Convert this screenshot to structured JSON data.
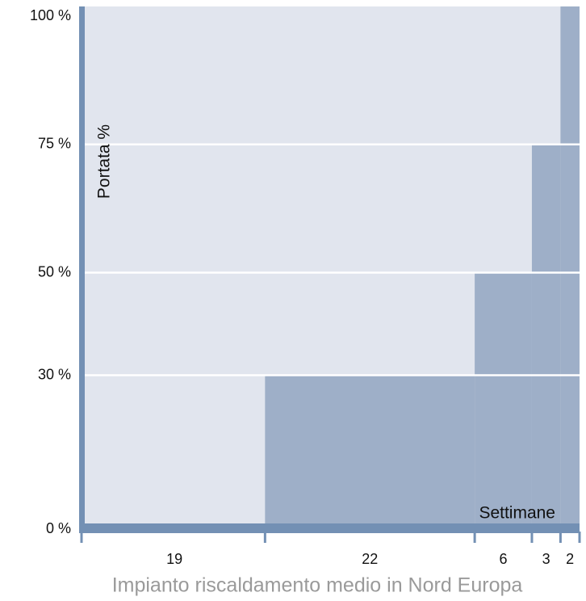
{
  "chart_data": {
    "type": "step-bar",
    "x_label": "Settimane",
    "y_label": "Portata %",
    "caption": "Impianto riscaldamento medio in Nord Europa",
    "widths": [
      19,
      22,
      6,
      3,
      2
    ],
    "values": [
      0,
      30,
      50,
      75,
      100
    ],
    "xlim": [
      0,
      52
    ],
    "ylim": [
      0,
      100
    ],
    "yticks": [
      {
        "value": 0,
        "label": "0 %"
      },
      {
        "value": 30,
        "label": "30 %"
      },
      {
        "value": 50,
        "label": "50 %"
      },
      {
        "value": 75,
        "label": "75 %"
      },
      {
        "value": 100,
        "label": "100 %"
      }
    ],
    "grid": true,
    "color": "#9eafc8",
    "background_color": "#e1e5ee",
    "axis_color": "#7390b4"
  }
}
